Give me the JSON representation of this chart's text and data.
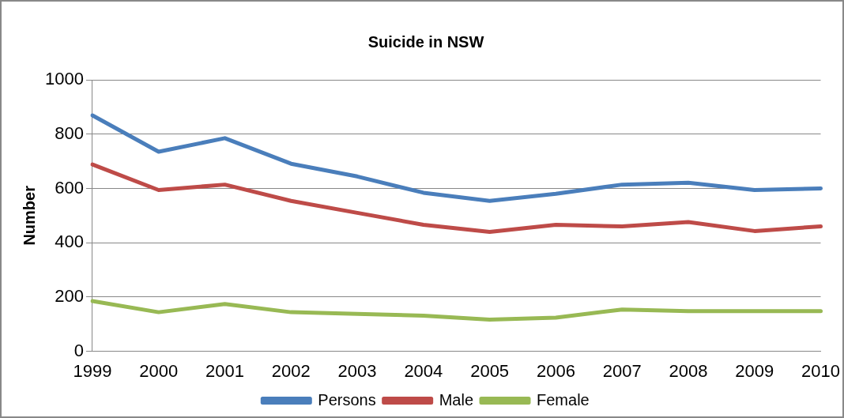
{
  "chart_data": {
    "type": "line",
    "title": "Suicide in NSW",
    "ylabel": "Number",
    "categories": [
      "1999",
      "2000",
      "2001",
      "2002",
      "2003",
      "2004",
      "2005",
      "2006",
      "2007",
      "2008",
      "2009",
      "2010"
    ],
    "series": [
      {
        "name": "Persons",
        "color": "#4a7ebb",
        "values": [
          869,
          735,
          785,
          691,
          644,
          584,
          554,
          580,
          614,
          621,
          594,
          600
        ]
      },
      {
        "name": "Male",
        "color": "#be4b48",
        "values": [
          688,
          594,
          614,
          554,
          510,
          466,
          440,
          466,
          460,
          476,
          443,
          460
        ]
      },
      {
        "name": "Female",
        "color": "#98b954",
        "values": [
          185,
          144,
          174,
          144,
          138,
          131,
          117,
          124,
          154,
          148,
          148,
          148
        ]
      }
    ],
    "ylim": [
      0,
      1000
    ],
    "yticks": [
      0,
      200,
      400,
      600,
      800,
      1000
    ],
    "grid": "y",
    "legend": "bottom",
    "marker": "none",
    "line_style": "solid"
  }
}
